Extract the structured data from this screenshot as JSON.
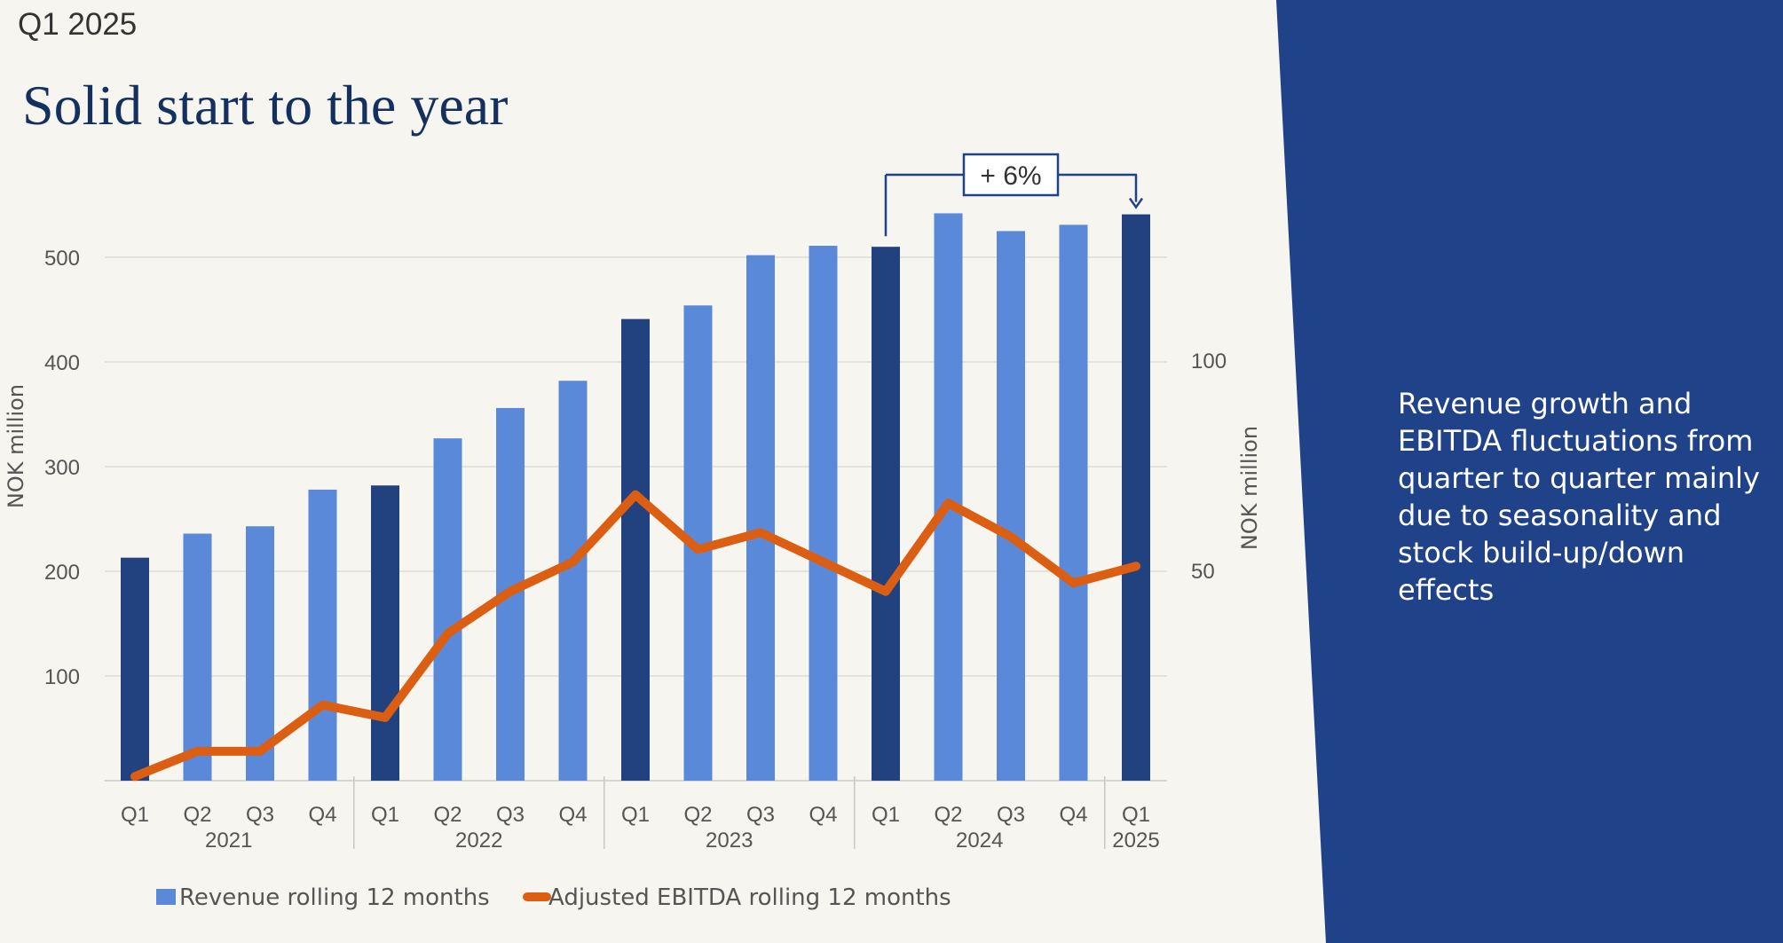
{
  "slide": {
    "period": "Q1 2025",
    "title": "Solid start to the year",
    "side_text": "Revenue growth and EBITDA fluctuations from quarter to quarter mainly due to seasonality and stock build-up/down effects"
  },
  "colors": {
    "background": "#f7f5f0",
    "panel": "#1f4289",
    "bar_dark": "#21427f",
    "bar_light": "#5a89d9",
    "line": "#dc5e12",
    "annotation": "#1f4289"
  },
  "chart_data": {
    "type": "bar",
    "categories": [
      "Q1",
      "Q2",
      "Q3",
      "Q4",
      "Q1",
      "Q2",
      "Q3",
      "Q4",
      "Q1",
      "Q2",
      "Q3",
      "Q4",
      "Q1",
      "Q2",
      "Q3",
      "Q4",
      "Q1"
    ],
    "year_groups": [
      {
        "label": "2021",
        "count": 4
      },
      {
        "label": "2022",
        "count": 4
      },
      {
        "label": "2023",
        "count": 4
      },
      {
        "label": "2024",
        "count": 4
      },
      {
        "label": "2025",
        "count": 1
      }
    ],
    "highlighted": [
      true,
      false,
      false,
      false,
      true,
      false,
      false,
      false,
      true,
      false,
      false,
      false,
      true,
      false,
      false,
      false,
      true
    ],
    "series": [
      {
        "name": "Revenue rolling 12 months",
        "type": "bar",
        "axis": "left",
        "values": [
          213,
          236,
          243,
          278,
          282,
          327,
          356,
          382,
          441,
          454,
          502,
          511,
          510,
          542,
          525,
          531,
          541
        ]
      },
      {
        "name": "Adjusted EBITDA rolling 12 months",
        "type": "line",
        "axis": "right",
        "values": [
          1,
          7,
          7,
          18,
          15,
          35,
          45,
          52,
          68,
          55,
          59,
          52,
          45,
          66,
          58,
          47,
          51
        ]
      }
    ],
    "ylabel": "NOK million",
    "y2label": "NOK million",
    "ylim": [
      0,
      500
    ],
    "yticks": [
      100,
      200,
      300,
      400,
      500
    ],
    "y2lim": [
      0,
      100
    ],
    "y2ticks": [
      50,
      100
    ],
    "grid": true,
    "legend_position": "bottom-left",
    "annotation": {
      "text": "+ 6%",
      "from_index": 12,
      "to_index": 16
    }
  }
}
